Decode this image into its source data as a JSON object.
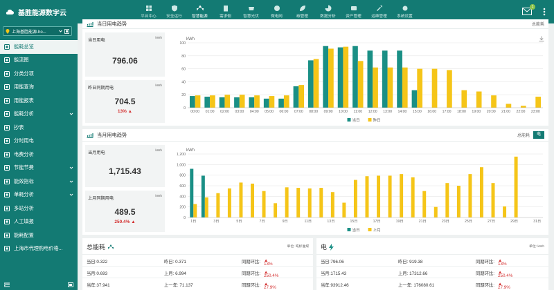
{
  "app": {
    "title": "基胜能源数字云"
  },
  "nav": [
    {
      "label": "平台中心",
      "icon": "grid-icon",
      "active": false
    },
    {
      "label": "安全运行",
      "icon": "shield-icon",
      "active": false
    },
    {
      "label": "智慧能源",
      "icon": "recycle-icon",
      "active": true
    },
    {
      "label": "需求侧",
      "icon": "building-icon",
      "active": false
    },
    {
      "label": "智慧光伏",
      "icon": "solar-panel-icon",
      "active": false
    },
    {
      "label": "微电网",
      "icon": "microgrid-icon",
      "active": false
    },
    {
      "label": "碳管理",
      "icon": "leaf-icon",
      "active": false
    },
    {
      "label": "数据分析",
      "icon": "pie-icon",
      "active": false
    },
    {
      "label": "资产管理",
      "icon": "asset-icon",
      "active": false
    },
    {
      "label": "运维管理",
      "icon": "tools-icon",
      "active": false
    },
    {
      "label": "系统设置",
      "icon": "gear-icon",
      "active": false
    }
  ],
  "header": {
    "mail_count": "1"
  },
  "sidebar": {
    "site": "上海基胜能源-ho...",
    "items": [
      {
        "label": "能耗总览",
        "active": true,
        "chev": false
      },
      {
        "label": "能流图",
        "active": false,
        "chev": false
      },
      {
        "label": "分类分项",
        "active": false,
        "chev": false
      },
      {
        "label": "用能查询",
        "active": false,
        "chev": false
      },
      {
        "label": "用能报表",
        "active": false,
        "chev": false
      },
      {
        "label": "能耗分析",
        "active": false,
        "chev": true
      },
      {
        "label": "抄表",
        "active": false,
        "chev": false
      },
      {
        "label": "分时用电",
        "active": false,
        "chev": false
      },
      {
        "label": "电费分析",
        "active": false,
        "chev": false
      },
      {
        "label": "节能节费",
        "active": false,
        "chev": true
      },
      {
        "label": "能效指标",
        "active": false,
        "chev": true
      },
      {
        "label": "单耗分析",
        "active": false,
        "chev": true
      },
      {
        "label": "多站分析",
        "active": false,
        "chev": false
      },
      {
        "label": "人工填报",
        "active": false,
        "chev": false
      },
      {
        "label": "能耗配置",
        "active": false,
        "chev": false
      },
      {
        "label": "上海市代理购电价格...",
        "active": false,
        "chev": false
      }
    ]
  },
  "daily": {
    "title": "当日用电趋势",
    "right_label": "总能耗",
    "today_label": "当日用电",
    "today_value": "796.06",
    "yday_label": "昨日同期用电",
    "yday_value": "704.5",
    "yday_pct": "13%",
    "unit": "kWh"
  },
  "monthly": {
    "title": "当月用电趋势",
    "right_label": "总能耗",
    "tab": "电",
    "month_label": "当月用电",
    "month_value": "1,715.43",
    "last_label": "上月同期用电",
    "last_value": "489.5",
    "last_pct": "250.4%",
    "unit": "kWh"
  },
  "total_card": {
    "title": "总能耗",
    "unit": "单位: 吨标准煤",
    "rows": [
      {
        "a": "当日:0.322",
        "b": "昨日: 0.371",
        "c": "同期环比:",
        "pct": "13%"
      },
      {
        "a": "当月:0.693",
        "b": "上月: 6.994",
        "c": "同期环比:",
        "pct": "250.4%"
      },
      {
        "a": "当年:37.941",
        "b": "上一年: 71.137",
        "c": "同期环比:",
        "pct": "27.9%"
      }
    ]
  },
  "elec_card": {
    "title": "电",
    "unit": "单位: kWh",
    "rows": [
      {
        "a": "当日:796.06",
        "b": "昨日: 919.38",
        "c": "同期环比:",
        "pct": "13%"
      },
      {
        "a": "当月:1715.43",
        "b": "上月: 17312.66",
        "c": "同期环比:",
        "pct": "250.4%"
      },
      {
        "a": "当年:93912.46",
        "b": "上一年: 176080.61",
        "c": "同期环比:",
        "pct": "27.9%"
      }
    ]
  },
  "colors": {
    "today": "#1a8f85",
    "prev": "#f5c518",
    "brand": "#137a73"
  },
  "chart_data": [
    {
      "type": "bar",
      "ylabel": "kWh",
      "ylim": [
        0,
        100
      ],
      "yticks": [
        0,
        20,
        40,
        60,
        80,
        100
      ],
      "categories": [
        "00:00",
        "01:00",
        "02:00",
        "03:00",
        "04:00",
        "05:00",
        "06:00",
        "07:00",
        "08:00",
        "09:00",
        "10:00",
        "11:00",
        "12:00",
        "13:00",
        "14:00",
        "15:00",
        "16:00",
        "17:00",
        "18:00",
        "19:00",
        "20:00",
        "21:00",
        "22:00",
        "23:00"
      ],
      "series": [
        {
          "name": "当日",
          "values": [
            18,
            17,
            16,
            16,
            16,
            14,
            14,
            33,
            73,
            95,
            93,
            95,
            88,
            88,
            88,
            27,
            null,
            null,
            null,
            null,
            null,
            null,
            null,
            null
          ]
        },
        {
          "name": "昨日",
          "values": [
            19,
            19,
            20,
            20,
            19,
            18,
            19,
            35,
            75,
            91,
            94,
            72,
            62,
            62,
            62,
            60,
            60,
            58,
            27,
            25,
            19,
            6,
            3,
            17
          ]
        }
      ],
      "legend": "bottom"
    },
    {
      "type": "bar",
      "ylabel": "kWh",
      "ylim": [
        0,
        1200
      ],
      "yticks": [
        0,
        200,
        400,
        600,
        800,
        1000,
        1200
      ],
      "categories": [
        "1日",
        "2日",
        "3日",
        "4日",
        "5日",
        "6日",
        "7日",
        "8日",
        "9日",
        "10日",
        "11日",
        "12日",
        "13日",
        "14日",
        "15日",
        "16日",
        "17日",
        "18日",
        "19日",
        "20日",
        "21日",
        "22日",
        "23日",
        "24日",
        "25日",
        "26日",
        "27日",
        "28日",
        "29日",
        "30日",
        "31日"
      ],
      "xticks": [
        "1日",
        "3日",
        "5日",
        "7日",
        "9日",
        "11日",
        "13日",
        "15日",
        "17日",
        "19日",
        "21日",
        "23日",
        "25日",
        "27日",
        "29日",
        "31日"
      ],
      "series": [
        {
          "name": "当日",
          "values": [
            920,
            790,
            null,
            null,
            null,
            null,
            null,
            null,
            null,
            null,
            null,
            null,
            null,
            null,
            null,
            null,
            null,
            null,
            null,
            null,
            null,
            null,
            null,
            null,
            null,
            null,
            null,
            null,
            null,
            null,
            null
          ]
        },
        {
          "name": "上月",
          "values": [
            255,
            380,
            460,
            550,
            660,
            640,
            500,
            270,
            570,
            560,
            550,
            560,
            480,
            280,
            710,
            780,
            790,
            790,
            820,
            760,
            500,
            200,
            650,
            600,
            820,
            950,
            650,
            210,
            1150,
            null,
            null
          ]
        }
      ],
      "legend": "bottom"
    }
  ]
}
